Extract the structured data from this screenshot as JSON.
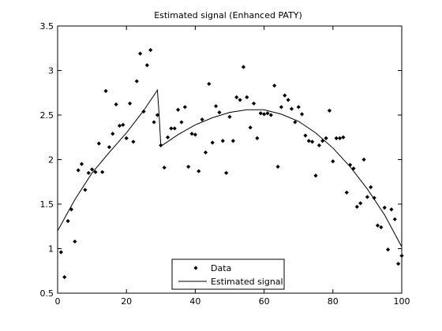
{
  "chart_data": {
    "type": "scatter",
    "title": "Estimated signal (Enhanced PATY)",
    "xlabel": "",
    "ylabel": "",
    "xlim": [
      0,
      100
    ],
    "ylim": [
      0.5,
      3.5
    ],
    "xticks": [
      0,
      20,
      40,
      60,
      80,
      100
    ],
    "yticks": [
      0.5,
      1,
      1.5,
      2,
      2.5,
      3,
      3.5
    ],
    "xtick_labels": [
      "0",
      "20",
      "40",
      "60",
      "80",
      "100"
    ],
    "ytick_labels": [
      "0.5",
      "1",
      "1.5",
      "2",
      "2.5",
      "3",
      "3.5"
    ],
    "grid": false,
    "legend_position": "bottom-center",
    "legend": [
      {
        "label": "Data",
        "style": "marker"
      },
      {
        "label": "Estimated signal",
        "style": "line"
      }
    ],
    "series": [
      {
        "name": "Data",
        "kind": "scatter",
        "color": "#000000",
        "x": [
          1,
          2,
          3,
          4,
          5,
          6,
          7,
          8,
          9,
          10,
          11,
          12,
          13,
          14,
          15,
          16,
          17,
          18,
          19,
          20,
          21,
          22,
          23,
          24,
          25,
          26,
          27,
          28,
          29,
          30,
          31,
          32,
          33,
          34,
          35,
          36,
          37,
          38,
          39,
          40,
          41,
          42,
          43,
          44,
          45,
          46,
          47,
          48,
          49,
          50,
          51,
          52,
          53,
          54,
          55,
          56,
          57,
          58,
          59,
          60,
          61,
          62,
          63,
          64,
          65,
          66,
          67,
          68,
          69,
          70,
          71,
          72,
          73,
          74,
          75,
          76,
          77,
          78,
          79,
          80,
          81,
          82,
          83,
          84,
          85,
          86,
          87,
          88,
          89,
          90,
          91,
          92,
          93,
          94,
          95,
          96,
          97,
          98,
          99,
          100
        ],
        "y": [
          0.96,
          0.68,
          1.31,
          1.44,
          1.08,
          1.88,
          1.95,
          1.66,
          1.85,
          1.89,
          1.86,
          2.18,
          1.86,
          2.77,
          2.14,
          2.29,
          2.62,
          2.38,
          2.39,
          2.24,
          2.63,
          2.2,
          2.88,
          3.19,
          2.54,
          3.06,
          3.23,
          2.42,
          2.5,
          2.16,
          1.91,
          2.25,
          2.35,
          2.35,
          2.56,
          2.42,
          2.59,
          1.92,
          2.29,
          2.28,
          1.87,
          2.45,
          2.08,
          2.85,
          2.19,
          2.6,
          2.53,
          2.21,
          1.85,
          2.48,
          2.21,
          2.7,
          2.67,
          3.04,
          2.7,
          2.36,
          2.63,
          2.24,
          2.52,
          2.51,
          2.52,
          2.5,
          2.83,
          1.92,
          2.59,
          2.72,
          2.67,
          2.57,
          2.42,
          2.59,
          2.51,
          2.27,
          2.21,
          2.2,
          1.82,
          2.16,
          2.21,
          2.24,
          2.55,
          1.98,
          2.24,
          2.24,
          2.25,
          1.63,
          1.94,
          1.9,
          1.47,
          1.51,
          2.0,
          1.58,
          1.69,
          1.57,
          1.26,
          1.24,
          1.46,
          0.99,
          1.44,
          1.33,
          0.83,
          0.92
        ]
      },
      {
        "name": "Estimated signal",
        "kind": "line",
        "color": "#000000",
        "x": [
          0,
          5,
          10,
          15,
          20,
          25,
          29,
          29.5,
          30,
          35,
          40,
          45,
          50,
          55,
          60,
          65,
          70,
          75,
          80,
          85,
          90,
          95,
          100
        ],
        "y": [
          1.2,
          1.55,
          1.85,
          2.08,
          2.3,
          2.55,
          2.78,
          2.5,
          2.15,
          2.28,
          2.39,
          2.47,
          2.53,
          2.56,
          2.56,
          2.51,
          2.43,
          2.3,
          2.13,
          1.92,
          1.67,
          1.38,
          1.02
        ]
      }
    ]
  }
}
